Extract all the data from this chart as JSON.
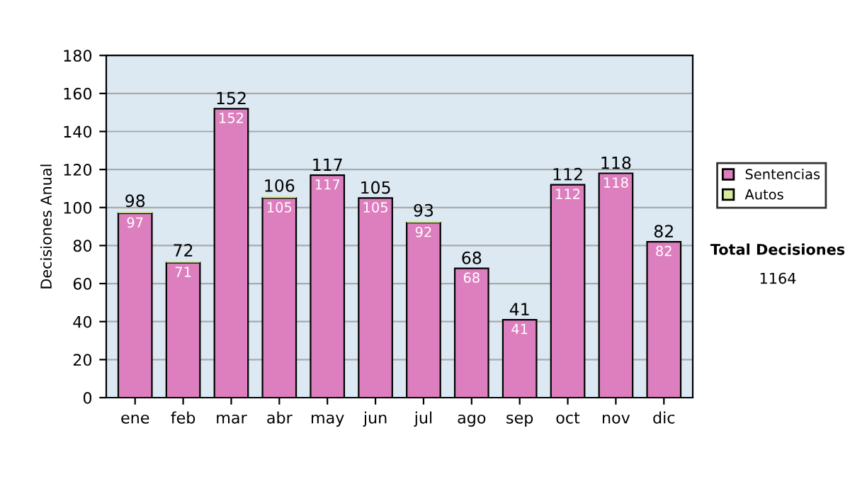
{
  "chart_data": {
    "type": "bar",
    "stacked": true,
    "ylabel": "Decisiones Anual",
    "categories": [
      "ene",
      "feb",
      "mar",
      "abr",
      "may",
      "jun",
      "jul",
      "ago",
      "sep",
      "oct",
      "nov",
      "dic"
    ],
    "series": [
      {
        "name": "Sentencias",
        "color": "#dd7fbf",
        "values": [
          97,
          71,
          152,
          105,
          117,
          105,
          92,
          68,
          41,
          112,
          118,
          82
        ],
        "value_labels": [
          "97",
          "71",
          "152",
          "105",
          "117",
          "105",
          "92",
          "68",
          "41",
          "112",
          "118",
          "82"
        ]
      },
      {
        "name": "Autos",
        "color": "#d8ec9c",
        "values": [
          1,
          1,
          0,
          1,
          0,
          0,
          1,
          0,
          0,
          0,
          0,
          0
        ]
      }
    ],
    "totals": [
      "98",
      "72",
      "152",
      "106",
      "117",
      "105",
      "93",
      "68",
      "41",
      "112",
      "118",
      "82"
    ],
    "ylim": [
      0,
      180
    ],
    "yticks": [
      0,
      20,
      40,
      60,
      80,
      100,
      120,
      140,
      160,
      180
    ],
    "grid": "y",
    "legend": "right",
    "annotations": [
      "Total Decisiones",
      "1164"
    ]
  }
}
